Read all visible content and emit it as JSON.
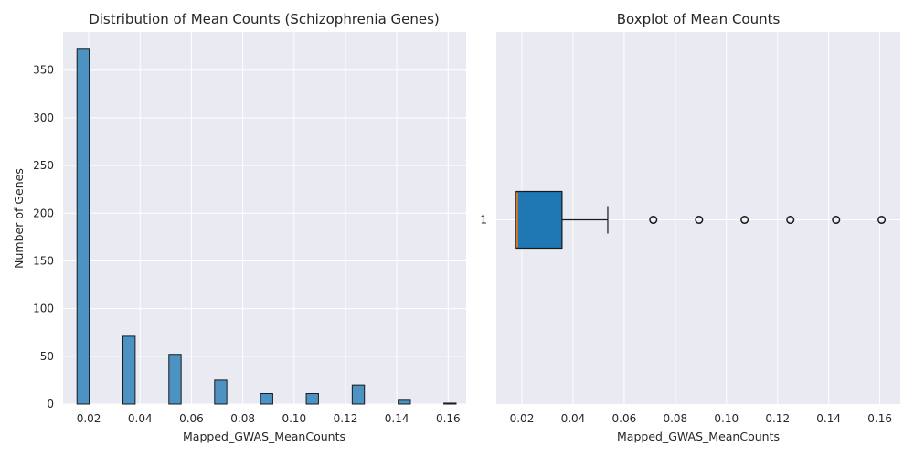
{
  "chart_data": [
    {
      "type": "bar",
      "title": "Distribution of Mean Counts (Schizophrenia Genes)",
      "xlabel": "Mapped_GWAS_MeanCounts",
      "ylabel": "Number of Genes",
      "xlim": [
        0.01,
        0.167
      ],
      "ylim": [
        0,
        390
      ],
      "grid": true,
      "xticks": [
        "0.02",
        "0.04",
        "0.06",
        "0.08",
        "0.10",
        "0.12",
        "0.14",
        "0.16"
      ],
      "yticks": [
        "0",
        "50",
        "100",
        "150",
        "200",
        "250",
        "300",
        "350"
      ],
      "bin_width": 0.00476,
      "bins": [
        {
          "x": 0.0178,
          "value": 372
        },
        {
          "x": 0.0357,
          "value": 71
        },
        {
          "x": 0.0536,
          "value": 52
        },
        {
          "x": 0.0714,
          "value": 25
        },
        {
          "x": 0.0893,
          "value": 11
        },
        {
          "x": 0.1071,
          "value": 11
        },
        {
          "x": 0.125,
          "value": 20
        },
        {
          "x": 0.1429,
          "value": 4
        },
        {
          "x": 0.1607,
          "value": 1
        }
      ],
      "bar_color": "#4c92c3"
    },
    {
      "type": "boxplot",
      "title": "Boxplot of Mean Counts",
      "xlabel": "Mapped_GWAS_MeanCounts",
      "ylabel": "",
      "xlim": [
        0.01,
        0.168
      ],
      "grid": true,
      "xticks": [
        "0.02",
        "0.04",
        "0.06",
        "0.08",
        "0.10",
        "0.12",
        "0.14",
        "0.16"
      ],
      "yticks": [
        "1"
      ],
      "box": {
        "q1": 0.0178,
        "median": 0.0178,
        "q3": 0.0357,
        "whisker_low": 0.0178,
        "whisker_high": 0.0536
      },
      "outliers": [
        0.0714,
        0.0893,
        0.1071,
        0.125,
        0.1429,
        0.1607
      ],
      "box_color": "#1f77b4",
      "median_color": "#ff7f0e"
    }
  ]
}
